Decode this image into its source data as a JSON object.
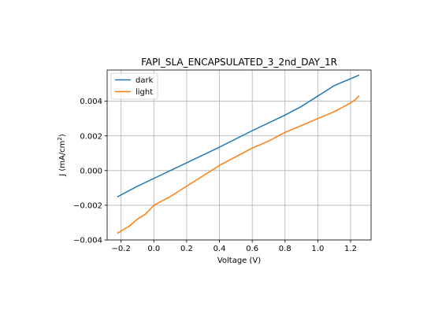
{
  "chart_data": {
    "type": "line",
    "title": "FAPI_SLA_ENCAPSULATED_3_2nd_DAY_1R",
    "xlabel": "Voltage (V)",
    "ylabel_main": "J (mA/cm",
    "ylabel_sup": "2",
    "ylabel_tail": ")",
    "xlim": [
      -0.285,
      1.325
    ],
    "ylim": [
      -0.004,
      0.0058
    ],
    "xticks": [
      -0.2,
      0.0,
      0.2,
      0.4,
      0.6,
      0.8,
      1.0,
      1.2
    ],
    "xtick_labels": [
      "−0.2",
      "0.0",
      "0.2",
      "0.4",
      "0.6",
      "0.8",
      "1.0",
      "1.2"
    ],
    "yticks": [
      -0.004,
      -0.002,
      0.0,
      0.002,
      0.004
    ],
    "ytick_labels": [
      "−0.004",
      "−0.002",
      "0.000",
      "0.002",
      "0.004"
    ],
    "grid": true,
    "legend_position": "upper-left",
    "series": [
      {
        "name": "dark",
        "color": "#1f77b4",
        "x": [
          -0.22,
          -0.1,
          0.0,
          0.2,
          0.4,
          0.6,
          0.8,
          0.9,
          0.95,
          1.0,
          1.05,
          1.1,
          1.15,
          1.2,
          1.25
        ],
        "y": [
          -0.0015,
          -0.0009,
          -0.00045,
          0.00045,
          0.00135,
          0.0023,
          0.0032,
          0.0037,
          0.004,
          0.0043,
          0.0046,
          0.0049,
          0.0051,
          0.0053,
          0.0055
        ]
      },
      {
        "name": "light",
        "color": "#ff7f0e",
        "x": [
          -0.22,
          -0.15,
          -0.1,
          -0.05,
          0.0,
          0.1,
          0.2,
          0.3,
          0.4,
          0.5,
          0.6,
          0.7,
          0.8,
          0.9,
          1.0,
          1.1,
          1.2,
          1.23,
          1.25
        ],
        "y": [
          -0.0036,
          -0.0032,
          -0.0028,
          -0.0025,
          -0.002,
          -0.0015,
          -0.0009,
          -0.0003,
          0.0003,
          0.0008,
          0.0013,
          0.0017,
          0.0022,
          0.0026,
          0.003,
          0.0034,
          0.0039,
          0.0041,
          0.0043
        ]
      }
    ]
  }
}
